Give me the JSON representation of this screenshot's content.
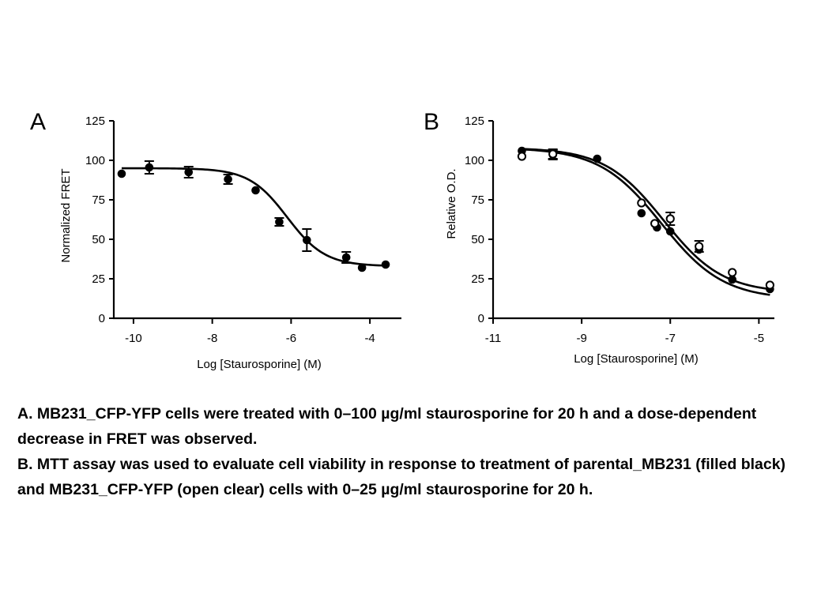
{
  "chart_data": [
    {
      "panel": "A",
      "type": "scatter",
      "xlabel": "Log [Staurosporine] (M)",
      "ylabel": "Normalized FRET",
      "xlim": [
        -10.5,
        -3.2
      ],
      "ylim": [
        0,
        125
      ],
      "xticks": [
        -10,
        -8,
        -6,
        -4
      ],
      "yticks": [
        0,
        25,
        50,
        75,
        100,
        125
      ],
      "series": [
        {
          "marker": "filled",
          "fit": "sigmoidal",
          "fit_params": {
            "bottom": 33,
            "top": 95,
            "logEC50": -6.1,
            "hill": 0.9
          },
          "points": [
            {
              "x": -10.3,
              "y": 91.5
            },
            {
              "x": -9.6,
              "y": 95.5,
              "err": 4
            },
            {
              "x": -8.6,
              "y": 92.5,
              "err": 3.5
            },
            {
              "x": -7.6,
              "y": 88,
              "err": 3
            },
            {
              "x": -6.9,
              "y": 81
            },
            {
              "x": -6.3,
              "y": 61,
              "err": 2.5
            },
            {
              "x": -5.6,
              "y": 49.5,
              "err": 7
            },
            {
              "x": -4.6,
              "y": 38.5,
              "err": 3.5
            },
            {
              "x": -4.2,
              "y": 32
            },
            {
              "x": -3.6,
              "y": 34
            }
          ]
        }
      ]
    },
    {
      "panel": "B",
      "type": "scatter",
      "xlabel": "Log [Staurosporine] (M)",
      "ylabel": "Relative O.D.",
      "xlim": [
        -11,
        -4.65
      ],
      "ylim": [
        0,
        125
      ],
      "xticks": [
        -11,
        -9,
        -7,
        -5
      ],
      "yticks": [
        0,
        25,
        50,
        75,
        100,
        125
      ],
      "series": [
        {
          "marker": "filled",
          "fit": "sigmoidal",
          "fit_params": {
            "bottom": 12,
            "top": 108,
            "logEC50": -7.2,
            "hill": 0.62
          },
          "points": [
            {
              "x": -10.35,
              "y": 106
            },
            {
              "x": -9.65,
              "y": 103.5,
              "err": 3
            },
            {
              "x": -8.65,
              "y": 101
            },
            {
              "x": -7.65,
              "y": 66.5
            },
            {
              "x": -7.3,
              "y": 57.5
            },
            {
              "x": -7.0,
              "y": 55
            },
            {
              "x": -6.35,
              "y": 43.5
            },
            {
              "x": -5.6,
              "y": 24.5
            },
            {
              "x": -4.75,
              "y": 18.5
            }
          ]
        },
        {
          "marker": "open",
          "fit": "sigmoidal",
          "fit_params": {
            "bottom": 16,
            "top": 108,
            "logEC50": -7.15,
            "hill": 0.65
          },
          "points": [
            {
              "x": -10.35,
              "y": 102.5
            },
            {
              "x": -9.65,
              "y": 104,
              "err": 3
            },
            {
              "x": -7.65,
              "y": 73
            },
            {
              "x": -7.35,
              "y": 60
            },
            {
              "x": -7.0,
              "y": 63,
              "err": 4
            },
            {
              "x": -6.35,
              "y": 45.5,
              "err": 3.5
            },
            {
              "x": -5.6,
              "y": 29
            },
            {
              "x": -4.75,
              "y": 21
            }
          ]
        }
      ]
    }
  ],
  "captions": [
    "A. MB231_CFP-YFP cells were treated with 0–100 µg/ml staurosporine for 20 h and a dose-dependent decrease in FRET was observed.",
    "B. MTT assay was used to evaluate cell viability in response to treatment of parental_MB231 (filled black) and MB231_CFP-YFP (open clear) cells with 0–25 µg/ml staurosporine for 20 h."
  ]
}
